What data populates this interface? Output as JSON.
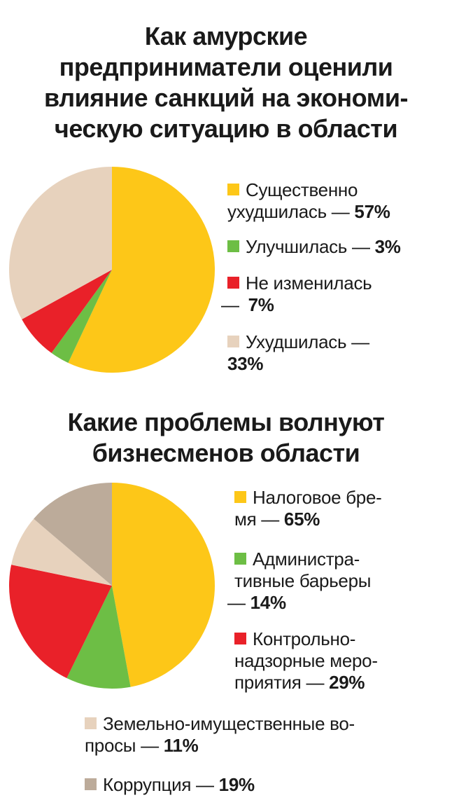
{
  "colors": {
    "yellow": "#FDC718",
    "green": "#6DBE45",
    "red": "#E92129",
    "beige": "#E7D2BD",
    "taupe": "#BCAB9A"
  },
  "chart_data": [
    {
      "type": "pie",
      "title_lines": [
        "Как амурские",
        "предприниматели оценили",
        "влияние санкций на экономи-",
        "ческую ситуацию в области"
      ],
      "slices": [
        {
          "label_lines": [
            "Существенно",
            "ухудшилась — "
          ],
          "value_text": "57%",
          "value": 57,
          "color": "#FDC718"
        },
        {
          "label_lines": [
            "Улучшилась — "
          ],
          "value_text": "3%",
          "value": 3,
          "color": "#6DBE45"
        },
        {
          "label_lines": [
            "Не изменилась",
            "— "
          ],
          "value_text": "7%",
          "value": 7,
          "color": "#E92129"
        },
        {
          "label_lines": [
            "Ухудшилась —",
            ""
          ],
          "value_text": "33%",
          "value": 33,
          "color": "#E7D2BD"
        }
      ]
    },
    {
      "type": "pie",
      "title_lines": [
        "Какие проблемы волнуют",
        "бизнесменов области"
      ],
      "slices": [
        {
          "label_lines": [
            "Налоговое бре-",
            "мя — "
          ],
          "value_text": "65%",
          "value": 65,
          "color": "#FDC718"
        },
        {
          "label_lines": [
            "Администра-",
            "тивные барьеры",
            "— "
          ],
          "value_text": "14%",
          "value": 14,
          "color": "#6DBE45"
        },
        {
          "label_lines": [
            "Контрольно-",
            "надзорные меро-",
            "приятия — "
          ],
          "value_text": "29%",
          "value": 29,
          "color": "#E92129"
        },
        {
          "label_lines": [
            "Земельно-имущественные во-",
            "просы — "
          ],
          "value_text": "11%",
          "value": 11,
          "color": "#E7D2BD"
        },
        {
          "label_lines": [
            "Коррупция — "
          ],
          "value_text": "19%",
          "value": 19,
          "color": "#BCAB9A"
        }
      ]
    }
  ]
}
